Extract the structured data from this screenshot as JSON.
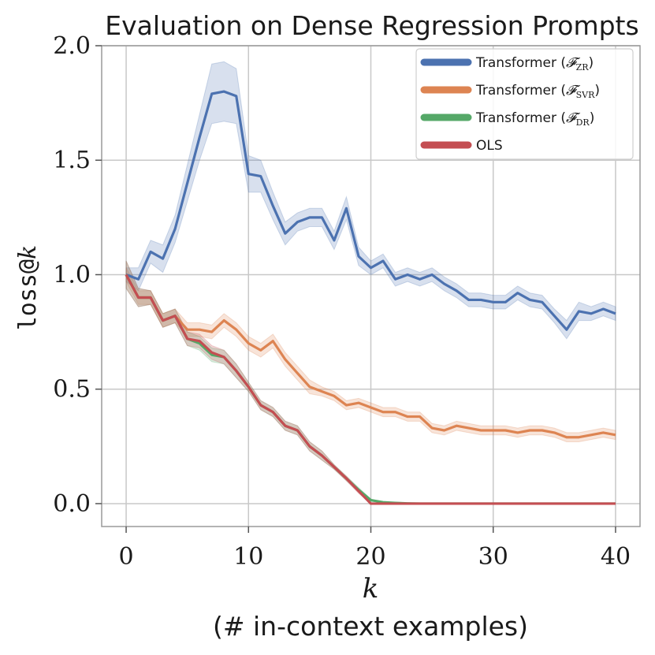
{
  "chart_data": {
    "type": "line",
    "title": "Evaluation on Dense Regression Prompts",
    "xlabel": "k",
    "xlabel_sub": "(# in-context examples)",
    "ylabel_mono": "loss@",
    "ylabel_italic": "k",
    "xlim": [
      -2,
      42
    ],
    "ylim": [
      -0.1,
      2.0
    ],
    "xticks": [
      0,
      10,
      20,
      30,
      40
    ],
    "xtick_labels": [
      "0",
      "10",
      "20",
      "30",
      "40"
    ],
    "yticks": [
      0.0,
      0.5,
      1.0,
      1.5,
      2.0
    ],
    "ytick_labels": [
      "0.0",
      "0.5",
      "1.0",
      "1.5",
      "2.0"
    ],
    "grid": true,
    "legend_position": "top-right",
    "x": [
      0,
      1,
      2,
      3,
      4,
      5,
      6,
      7,
      8,
      9,
      10,
      11,
      12,
      13,
      14,
      15,
      16,
      17,
      18,
      19,
      20,
      21,
      22,
      23,
      24,
      25,
      26,
      27,
      28,
      29,
      30,
      31,
      32,
      33,
      34,
      35,
      36,
      37,
      38,
      39,
      40
    ],
    "series": [
      {
        "name": "Transformer (F_ZR)",
        "legend_prefix": "Transformer (",
        "legend_symbol": "𝓕",
        "legend_sub": "ZR",
        "legend_suffix": ")",
        "color": "#4c72b0",
        "values": [
          1.0,
          0.98,
          1.1,
          1.07,
          1.2,
          1.4,
          1.6,
          1.79,
          1.8,
          1.78,
          1.44,
          1.43,
          1.3,
          1.18,
          1.23,
          1.25,
          1.25,
          1.15,
          1.29,
          1.08,
          1.03,
          1.06,
          0.98,
          1.0,
          0.98,
          1.0,
          0.96,
          0.93,
          0.89,
          0.89,
          0.88,
          0.88,
          0.92,
          0.89,
          0.88,
          0.82,
          0.76,
          0.84,
          0.83,
          0.85,
          0.83
        ],
        "band": [
          0.03,
          0.05,
          0.05,
          0.06,
          0.06,
          0.08,
          0.1,
          0.13,
          0.13,
          0.12,
          0.08,
          0.07,
          0.06,
          0.05,
          0.04,
          0.04,
          0.04,
          0.04,
          0.05,
          0.04,
          0.03,
          0.03,
          0.03,
          0.03,
          0.03,
          0.03,
          0.03,
          0.03,
          0.03,
          0.03,
          0.03,
          0.03,
          0.03,
          0.03,
          0.03,
          0.03,
          0.04,
          0.04,
          0.03,
          0.03,
          0.03
        ]
      },
      {
        "name": "Transformer (F_SVR)",
        "legend_prefix": "Transformer (",
        "legend_symbol": "𝓕",
        "legend_sub": "SVR",
        "legend_suffix": ")",
        "color": "#dd8452",
        "values": [
          1.0,
          0.9,
          0.9,
          0.8,
          0.82,
          0.76,
          0.76,
          0.75,
          0.8,
          0.76,
          0.7,
          0.67,
          0.71,
          0.63,
          0.57,
          0.51,
          0.49,
          0.47,
          0.43,
          0.44,
          0.42,
          0.4,
          0.4,
          0.38,
          0.38,
          0.33,
          0.32,
          0.34,
          0.33,
          0.32,
          0.32,
          0.32,
          0.31,
          0.32,
          0.32,
          0.31,
          0.29,
          0.29,
          0.3,
          0.31,
          0.3
        ],
        "band": [
          0.03,
          0.03,
          0.03,
          0.03,
          0.03,
          0.03,
          0.03,
          0.03,
          0.03,
          0.03,
          0.03,
          0.03,
          0.03,
          0.03,
          0.03,
          0.03,
          0.02,
          0.02,
          0.02,
          0.02,
          0.02,
          0.02,
          0.02,
          0.02,
          0.02,
          0.02,
          0.02,
          0.02,
          0.02,
          0.02,
          0.02,
          0.02,
          0.02,
          0.02,
          0.02,
          0.02,
          0.02,
          0.02,
          0.02,
          0.02,
          0.02
        ]
      },
      {
        "name": "Transformer (F_DR)",
        "legend_prefix": "Transformer (",
        "legend_symbol": "𝓕",
        "legend_sub": "DR",
        "legend_suffix": ")",
        "color": "#55a868",
        "values": [
          1.0,
          0.9,
          0.9,
          0.8,
          0.82,
          0.72,
          0.7,
          0.65,
          0.64,
          0.58,
          0.51,
          0.43,
          0.4,
          0.34,
          0.32,
          0.25,
          0.21,
          0.16,
          0.11,
          0.06,
          0.015,
          0.006,
          0.003,
          0.001,
          0,
          0,
          0,
          0,
          0,
          0,
          0,
          0,
          0,
          0,
          0,
          0,
          0,
          0,
          0,
          0,
          0
        ],
        "band": [
          0.06,
          0.04,
          0.03,
          0.03,
          0.03,
          0.03,
          0.03,
          0.03,
          0.03,
          0.03,
          0.02,
          0.02,
          0.02,
          0.02,
          0.02,
          0.02,
          0.02,
          0.01,
          0.01,
          0.01,
          0.005,
          0,
          0,
          0,
          0,
          0,
          0,
          0,
          0,
          0,
          0,
          0,
          0,
          0,
          0,
          0,
          0,
          0,
          0,
          0,
          0
        ]
      },
      {
        "name": "OLS",
        "legend_prefix": "OLS",
        "legend_symbol": "",
        "legend_sub": "",
        "legend_suffix": "",
        "color": "#c44e52",
        "values": [
          1.0,
          0.9,
          0.9,
          0.8,
          0.82,
          0.72,
          0.71,
          0.66,
          0.64,
          0.58,
          0.51,
          0.43,
          0.4,
          0.34,
          0.32,
          0.25,
          0.21,
          0.16,
          0.11,
          0.055,
          0.0,
          0,
          0,
          0,
          0,
          0,
          0,
          0,
          0,
          0,
          0,
          0,
          0,
          0,
          0,
          0,
          0,
          0,
          0,
          0,
          0
        ],
        "band": [
          0.06,
          0.04,
          0.03,
          0.03,
          0.03,
          0.03,
          0.03,
          0.03,
          0.03,
          0.03,
          0.02,
          0.02,
          0.02,
          0.02,
          0.02,
          0.02,
          0.02,
          0.01,
          0.01,
          0.01,
          0,
          0,
          0,
          0,
          0,
          0,
          0,
          0,
          0,
          0,
          0,
          0,
          0,
          0,
          0,
          0,
          0,
          0,
          0,
          0,
          0
        ]
      }
    ]
  }
}
